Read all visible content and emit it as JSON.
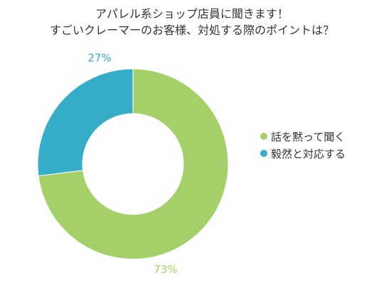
{
  "chart_data": {
    "type": "pie",
    "variant": "donut",
    "title_lines": [
      "アパレル系ショップ店員に聞きます！",
      "すごいクレーマーのお客様、対処する際のポイントは？"
    ],
    "categories": [
      "話を黙って聞く",
      "毅然と対応する"
    ],
    "values": [
      73,
      27
    ],
    "data_labels": [
      "73%",
      "27%"
    ],
    "colors": [
      "#a5cf69",
      "#35adc9"
    ],
    "legend_position": "right"
  }
}
